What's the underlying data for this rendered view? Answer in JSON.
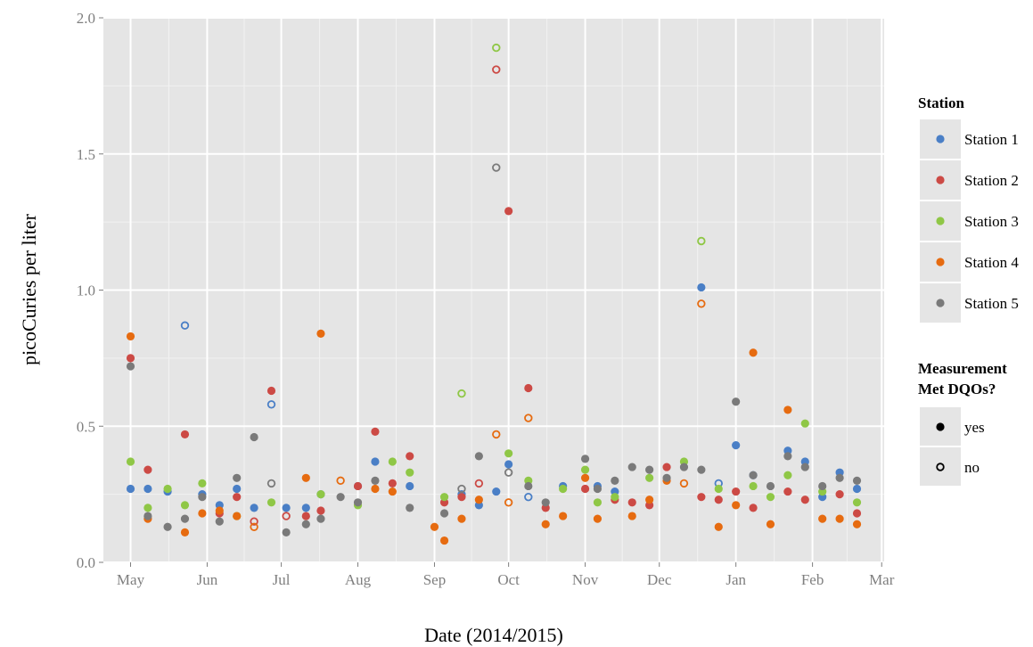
{
  "chart_data": {
    "type": "scatter",
    "title": "",
    "xlabel": "Date (2014/2015)",
    "ylabel": "picoCuries per liter",
    "ylim": [
      0,
      2.0
    ],
    "y_ticks": [
      "0.0",
      "0.5",
      "1.0",
      "1.5",
      "2.0"
    ],
    "x_ticks": [
      {
        "date": "2014-05-01",
        "label": "May"
      },
      {
        "date": "2014-06-01",
        "label": "Jun"
      },
      {
        "date": "2014-07-01",
        "label": "Jul"
      },
      {
        "date": "2014-08-01",
        "label": "Aug"
      },
      {
        "date": "2014-09-01",
        "label": "Sep"
      },
      {
        "date": "2014-10-01",
        "label": "Oct"
      },
      {
        "date": "2014-11-01",
        "label": "Nov"
      },
      {
        "date": "2014-12-01",
        "label": "Dec"
      },
      {
        "date": "2015-01-01",
        "label": "Jan"
      },
      {
        "date": "2015-02-01",
        "label": "Feb"
      },
      {
        "date": "2015-03-01",
        "label": "Mar"
      }
    ],
    "xlim": [
      "2014-04-20",
      "2015-03-02"
    ],
    "grid": true,
    "legend_placement": "right",
    "legend": {
      "color_title": "Station",
      "shape_title_lines": [
        "Measurement",
        "Met DQOs?"
      ],
      "shape_items": [
        {
          "label": "yes",
          "filled": true
        },
        {
          "label": "no",
          "filled": false
        }
      ]
    },
    "series": [
      {
        "name": "Station 1",
        "color": "#4a7fc6",
        "points": [
          {
            "x": "2014-05-01",
            "y": 0.27,
            "met": true
          },
          {
            "x": "2014-05-08",
            "y": 0.27,
            "met": true
          },
          {
            "x": "2014-05-16",
            "y": 0.26,
            "met": true
          },
          {
            "x": "2014-05-23",
            "y": 0.87,
            "met": false
          },
          {
            "x": "2014-05-30",
            "y": 0.25,
            "met": true
          },
          {
            "x": "2014-06-06",
            "y": 0.21,
            "met": true
          },
          {
            "x": "2014-06-13",
            "y": 0.27,
            "met": true
          },
          {
            "x": "2014-06-20",
            "y": 0.2,
            "met": true
          },
          {
            "x": "2014-06-27",
            "y": 0.58,
            "met": false
          },
          {
            "x": "2014-07-03",
            "y": 0.2,
            "met": true
          },
          {
            "x": "2014-07-11",
            "y": 0.2,
            "met": true
          },
          {
            "x": "2014-07-17",
            "y": 0.25,
            "met": true
          },
          {
            "x": "2014-08-01",
            "y": 0.28,
            "met": true
          },
          {
            "x": "2014-08-08",
            "y": 0.37,
            "met": true
          },
          {
            "x": "2014-08-22",
            "y": 0.28,
            "met": true
          },
          {
            "x": "2014-09-12",
            "y": 0.25,
            "met": true
          },
          {
            "x": "2014-09-19",
            "y": 0.21,
            "met": true
          },
          {
            "x": "2014-09-26",
            "y": 0.26,
            "met": true
          },
          {
            "x": "2014-10-01",
            "y": 0.36,
            "met": true
          },
          {
            "x": "2014-10-09",
            "y": 0.24,
            "met": false
          },
          {
            "x": "2014-10-23",
            "y": 0.28,
            "met": true
          },
          {
            "x": "2014-11-06",
            "y": 0.28,
            "met": true
          },
          {
            "x": "2014-11-13",
            "y": 0.26,
            "met": true
          },
          {
            "x": "2014-12-18",
            "y": 1.01,
            "met": true
          },
          {
            "x": "2014-12-25",
            "y": 0.29,
            "met": false
          },
          {
            "x": "2015-01-01",
            "y": 0.43,
            "met": true
          },
          {
            "x": "2015-01-08",
            "y": 0.32,
            "met": true
          },
          {
            "x": "2015-01-22",
            "y": 0.41,
            "met": true
          },
          {
            "x": "2015-01-29",
            "y": 0.37,
            "met": true
          },
          {
            "x": "2015-02-05",
            "y": 0.24,
            "met": true
          },
          {
            "x": "2015-02-12",
            "y": 0.33,
            "met": true
          },
          {
            "x": "2015-02-19",
            "y": 0.27,
            "met": true
          }
        ]
      },
      {
        "name": "Station 2",
        "color": "#cc4a45",
        "points": [
          {
            "x": "2014-05-01",
            "y": 0.75,
            "met": true
          },
          {
            "x": "2014-05-08",
            "y": 0.34,
            "met": true
          },
          {
            "x": "2014-05-23",
            "y": 0.47,
            "met": true
          },
          {
            "x": "2014-06-06",
            "y": 0.18,
            "met": true
          },
          {
            "x": "2014-06-13",
            "y": 0.24,
            "met": true
          },
          {
            "x": "2014-06-20",
            "y": 0.15,
            "met": false
          },
          {
            "x": "2014-06-27",
            "y": 0.63,
            "met": true
          },
          {
            "x": "2014-07-03",
            "y": 0.17,
            "met": false
          },
          {
            "x": "2014-07-11",
            "y": 0.17,
            "met": true
          },
          {
            "x": "2014-07-17",
            "y": 0.19,
            "met": true
          },
          {
            "x": "2014-08-01",
            "y": 0.28,
            "met": true
          },
          {
            "x": "2014-08-08",
            "y": 0.48,
            "met": true
          },
          {
            "x": "2014-08-15",
            "y": 0.29,
            "met": true
          },
          {
            "x": "2014-08-22",
            "y": 0.39,
            "met": true
          },
          {
            "x": "2014-09-05",
            "y": 0.22,
            "met": true
          },
          {
            "x": "2014-09-12",
            "y": 0.24,
            "met": true
          },
          {
            "x": "2014-09-19",
            "y": 0.29,
            "met": false
          },
          {
            "x": "2014-09-26",
            "y": 1.81,
            "met": false
          },
          {
            "x": "2014-10-01",
            "y": 1.29,
            "met": true
          },
          {
            "x": "2014-10-09",
            "y": 0.64,
            "met": true
          },
          {
            "x": "2014-10-16",
            "y": 0.2,
            "met": true
          },
          {
            "x": "2014-11-01",
            "y": 0.27,
            "met": true
          },
          {
            "x": "2014-11-13",
            "y": 0.23,
            "met": true
          },
          {
            "x": "2014-11-20",
            "y": 0.22,
            "met": true
          },
          {
            "x": "2014-11-27",
            "y": 0.21,
            "met": true
          },
          {
            "x": "2014-12-04",
            "y": 0.35,
            "met": true
          },
          {
            "x": "2014-12-18",
            "y": 0.24,
            "met": true
          },
          {
            "x": "2014-12-25",
            "y": 0.23,
            "met": true
          },
          {
            "x": "2015-01-01",
            "y": 0.26,
            "met": true
          },
          {
            "x": "2015-01-08",
            "y": 0.2,
            "met": true
          },
          {
            "x": "2015-01-22",
            "y": 0.26,
            "met": true
          },
          {
            "x": "2015-01-29",
            "y": 0.23,
            "met": true
          },
          {
            "x": "2015-02-12",
            "y": 0.25,
            "met": true
          },
          {
            "x": "2015-02-19",
            "y": 0.18,
            "met": true
          }
        ]
      },
      {
        "name": "Station 3",
        "color": "#8fc746",
        "points": [
          {
            "x": "2014-05-01",
            "y": 0.37,
            "met": true
          },
          {
            "x": "2014-05-08",
            "y": 0.2,
            "met": true
          },
          {
            "x": "2014-05-16",
            "y": 0.27,
            "met": true
          },
          {
            "x": "2014-05-23",
            "y": 0.21,
            "met": true
          },
          {
            "x": "2014-05-30",
            "y": 0.29,
            "met": true
          },
          {
            "x": "2014-06-13",
            "y": 0.17,
            "met": true
          },
          {
            "x": "2014-06-27",
            "y": 0.22,
            "met": true
          },
          {
            "x": "2014-07-17",
            "y": 0.25,
            "met": true
          },
          {
            "x": "2014-08-01",
            "y": 0.21,
            "met": true
          },
          {
            "x": "2014-08-15",
            "y": 0.37,
            "met": true
          },
          {
            "x": "2014-08-22",
            "y": 0.33,
            "met": true
          },
          {
            "x": "2014-09-05",
            "y": 0.24,
            "met": true
          },
          {
            "x": "2014-09-12",
            "y": 0.62,
            "met": false
          },
          {
            "x": "2014-09-26",
            "y": 1.89,
            "met": false
          },
          {
            "x": "2014-10-01",
            "y": 0.4,
            "met": true
          },
          {
            "x": "2014-10-09",
            "y": 0.3,
            "met": true
          },
          {
            "x": "2014-10-23",
            "y": 0.27,
            "met": true
          },
          {
            "x": "2014-11-01",
            "y": 0.34,
            "met": true
          },
          {
            "x": "2014-11-06",
            "y": 0.22,
            "met": true
          },
          {
            "x": "2014-11-13",
            "y": 0.24,
            "met": true
          },
          {
            "x": "2014-11-27",
            "y": 0.31,
            "met": true
          },
          {
            "x": "2014-12-11",
            "y": 0.37,
            "met": true
          },
          {
            "x": "2014-12-18",
            "y": 1.18,
            "met": false
          },
          {
            "x": "2014-12-25",
            "y": 0.27,
            "met": true
          },
          {
            "x": "2015-01-08",
            "y": 0.28,
            "met": true
          },
          {
            "x": "2015-01-15",
            "y": 0.24,
            "met": true
          },
          {
            "x": "2015-01-22",
            "y": 0.32,
            "met": true
          },
          {
            "x": "2015-01-29",
            "y": 0.51,
            "met": true
          },
          {
            "x": "2015-02-05",
            "y": 0.26,
            "met": true
          },
          {
            "x": "2015-02-19",
            "y": 0.22,
            "met": true
          }
        ]
      },
      {
        "name": "Station 4",
        "color": "#e66b10",
        "points": [
          {
            "x": "2014-05-01",
            "y": 0.83,
            "met": true
          },
          {
            "x": "2014-05-08",
            "y": 0.16,
            "met": true
          },
          {
            "x": "2014-05-23",
            "y": 0.11,
            "met": true
          },
          {
            "x": "2014-05-30",
            "y": 0.18,
            "met": true
          },
          {
            "x": "2014-06-06",
            "y": 0.19,
            "met": true
          },
          {
            "x": "2014-06-13",
            "y": 0.17,
            "met": true
          },
          {
            "x": "2014-06-20",
            "y": 0.13,
            "met": false
          },
          {
            "x": "2014-07-11",
            "y": 0.31,
            "met": true
          },
          {
            "x": "2014-07-17",
            "y": 0.84,
            "met": true
          },
          {
            "x": "2014-07-25",
            "y": 0.3,
            "met": false
          },
          {
            "x": "2014-08-08",
            "y": 0.27,
            "met": true
          },
          {
            "x": "2014-08-15",
            "y": 0.26,
            "met": true
          },
          {
            "x": "2014-09-01",
            "y": 0.13,
            "met": true
          },
          {
            "x": "2014-09-05",
            "y": 0.08,
            "met": true
          },
          {
            "x": "2014-09-12",
            "y": 0.16,
            "met": true
          },
          {
            "x": "2014-09-19",
            "y": 0.23,
            "met": true
          },
          {
            "x": "2014-09-26",
            "y": 0.47,
            "met": false
          },
          {
            "x": "2014-10-01",
            "y": 0.22,
            "met": false
          },
          {
            "x": "2014-10-09",
            "y": 0.53,
            "met": false
          },
          {
            "x": "2014-10-16",
            "y": 0.14,
            "met": true
          },
          {
            "x": "2014-10-23",
            "y": 0.17,
            "met": true
          },
          {
            "x": "2014-11-01",
            "y": 0.31,
            "met": true
          },
          {
            "x": "2014-11-06",
            "y": 0.16,
            "met": true
          },
          {
            "x": "2014-11-20",
            "y": 0.17,
            "met": true
          },
          {
            "x": "2014-11-27",
            "y": 0.23,
            "met": true
          },
          {
            "x": "2014-12-04",
            "y": 0.3,
            "met": true
          },
          {
            "x": "2014-12-11",
            "y": 0.29,
            "met": false
          },
          {
            "x": "2014-12-18",
            "y": 0.95,
            "met": false
          },
          {
            "x": "2014-12-25",
            "y": 0.13,
            "met": true
          },
          {
            "x": "2015-01-01",
            "y": 0.21,
            "met": true
          },
          {
            "x": "2015-01-08",
            "y": 0.77,
            "met": true
          },
          {
            "x": "2015-01-15",
            "y": 0.14,
            "met": true
          },
          {
            "x": "2015-01-22",
            "y": 0.56,
            "met": true
          },
          {
            "x": "2015-02-05",
            "y": 0.16,
            "met": true
          },
          {
            "x": "2015-02-12",
            "y": 0.16,
            "met": true
          },
          {
            "x": "2015-02-19",
            "y": 0.14,
            "met": true
          }
        ]
      },
      {
        "name": "Station 5",
        "color": "#7a7a7a",
        "points": [
          {
            "x": "2014-05-01",
            "y": 0.72,
            "met": true
          },
          {
            "x": "2014-05-08",
            "y": 0.17,
            "met": true
          },
          {
            "x": "2014-05-16",
            "y": 0.13,
            "met": true
          },
          {
            "x": "2014-05-23",
            "y": 0.16,
            "met": true
          },
          {
            "x": "2014-05-30",
            "y": 0.24,
            "met": true
          },
          {
            "x": "2014-06-06",
            "y": 0.15,
            "met": true
          },
          {
            "x": "2014-06-13",
            "y": 0.31,
            "met": true
          },
          {
            "x": "2014-06-20",
            "y": 0.46,
            "met": true
          },
          {
            "x": "2014-06-27",
            "y": 0.29,
            "met": false
          },
          {
            "x": "2014-07-03",
            "y": 0.11,
            "met": true
          },
          {
            "x": "2014-07-11",
            "y": 0.14,
            "met": true
          },
          {
            "x": "2014-07-17",
            "y": 0.16,
            "met": true
          },
          {
            "x": "2014-07-25",
            "y": 0.24,
            "met": true
          },
          {
            "x": "2014-08-01",
            "y": 0.22,
            "met": true
          },
          {
            "x": "2014-08-08",
            "y": 0.3,
            "met": true
          },
          {
            "x": "2014-08-22",
            "y": 0.2,
            "met": true
          },
          {
            "x": "2014-09-05",
            "y": 0.18,
            "met": true
          },
          {
            "x": "2014-09-12",
            "y": 0.27,
            "met": false
          },
          {
            "x": "2014-09-19",
            "y": 0.39,
            "met": true
          },
          {
            "x": "2014-09-26",
            "y": 1.45,
            "met": false
          },
          {
            "x": "2014-10-01",
            "y": 0.33,
            "met": false
          },
          {
            "x": "2014-10-09",
            "y": 0.28,
            "met": true
          },
          {
            "x": "2014-10-16",
            "y": 0.22,
            "met": true
          },
          {
            "x": "2014-11-01",
            "y": 0.38,
            "met": true
          },
          {
            "x": "2014-11-06",
            "y": 0.27,
            "met": true
          },
          {
            "x": "2014-11-13",
            "y": 0.3,
            "met": true
          },
          {
            "x": "2014-11-20",
            "y": 0.35,
            "met": true
          },
          {
            "x": "2014-11-27",
            "y": 0.34,
            "met": true
          },
          {
            "x": "2014-12-04",
            "y": 0.31,
            "met": true
          },
          {
            "x": "2014-12-11",
            "y": 0.35,
            "met": true
          },
          {
            "x": "2014-12-18",
            "y": 0.34,
            "met": true
          },
          {
            "x": "2015-01-01",
            "y": 0.59,
            "met": true
          },
          {
            "x": "2015-01-08",
            "y": 0.32,
            "met": true
          },
          {
            "x": "2015-01-15",
            "y": 0.28,
            "met": true
          },
          {
            "x": "2015-01-22",
            "y": 0.39,
            "met": true
          },
          {
            "x": "2015-01-29",
            "y": 0.35,
            "met": true
          },
          {
            "x": "2015-02-05",
            "y": 0.28,
            "met": true
          },
          {
            "x": "2015-02-12",
            "y": 0.31,
            "met": true
          },
          {
            "x": "2015-02-19",
            "y": 0.3,
            "met": true
          }
        ]
      }
    ]
  }
}
